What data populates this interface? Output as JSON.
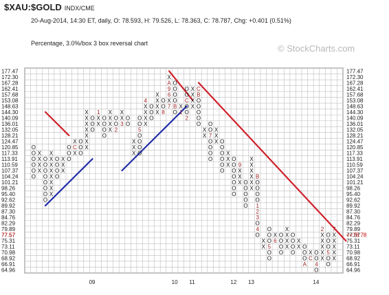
{
  "header": {
    "symbol": "$XAU:$GOLD",
    "exchange": "INDX/CME",
    "info_line": "20-Aug-2014, 14:30 ET, daily, O: 78.593, H: 79.526, L: 78.363, C: 78.787, Chg: +0.401 (0.51%)",
    "subtitle": "Percentage, 3.0%/box 3 box reversal chart",
    "watermark": "© StockCharts.com"
  },
  "colors": {
    "x_mark": "#111111",
    "o_mark": "#111111",
    "month_mark": "#9b1b1b",
    "grid": "#bdbdbd",
    "resistance_line": "#d0202a",
    "support_line": "#1f2fa8",
    "price_tag": "#c00000"
  },
  "chart_data": {
    "type": "point-and-figure",
    "y_levels": [
      "177.47",
      "172.30",
      "167.28",
      "162.41",
      "157.68",
      "153.08",
      "148.63",
      "144.30",
      "140.09",
      "136.01",
      "132.05",
      "128.21",
      "124.47",
      "120.85",
      "117.33",
      "113.91",
      "110.59",
      "107.37",
      "104.24",
      "101.21",
      "98.26",
      "95.40",
      "92.62",
      "89.92",
      "87.30",
      "84.76",
      "82.29",
      "79.89",
      "77.57",
      "75.31",
      "73.11",
      "70.98",
      "68.92",
      "66.91",
      "64.96"
    ],
    "current_price_label": "<<78.78",
    "x_labels": [
      {
        "label": "09",
        "col": 10
      },
      {
        "label": "10",
        "col": 24
      },
      {
        "label": "11",
        "col": 27
      },
      {
        "label": "12",
        "col": 34
      },
      {
        "label": "13",
        "col": 37
      },
      {
        "label": "14",
        "col": 48
      }
    ],
    "columns": [
      {
        "type": "O",
        "top": 13,
        "bottom": 18,
        "marks": {}
      },
      {
        "type": "X",
        "top": 14,
        "bottom": 17,
        "marks": {}
      },
      {
        "type": "O",
        "top": 15,
        "bottom": 22,
        "marks": {}
      },
      {
        "type": "X",
        "top": 14,
        "bottom": 21,
        "marks": {}
      },
      {
        "type": "O",
        "top": 15,
        "bottom": 18,
        "marks": {}
      },
      {
        "type": "X",
        "top": 15,
        "bottom": 17,
        "marks": {}
      },
      {
        "type": "O",
        "top": 13,
        "bottom": 15,
        "marks": {}
      },
      {
        "type": "X",
        "top": 12,
        "bottom": 14,
        "marks": {
          "13": "C"
        }
      },
      {
        "type": "O",
        "top": 12,
        "bottom": 14,
        "marks": {}
      },
      {
        "type": "X",
        "top": 7,
        "bottom": 13,
        "marks": {}
      },
      {
        "type": "O",
        "top": 8,
        "bottom": 10,
        "marks": {}
      },
      {
        "type": "X",
        "top": 7,
        "bottom": 9,
        "marks": {
          "7": "1"
        }
      },
      {
        "type": "O",
        "top": 8,
        "bottom": 11,
        "marks": {}
      },
      {
        "type": "X",
        "top": 7,
        "bottom": 10,
        "marks": {}
      },
      {
        "type": "O",
        "top": 8,
        "bottom": 10,
        "marks": {
          "10": "2"
        }
      },
      {
        "type": "X",
        "top": 7,
        "bottom": 9,
        "marks": {
          "9": "3"
        }
      },
      {
        "type": "O",
        "top": 8,
        "bottom": 9,
        "marks": {}
      },
      {
        "type": "X",
        "top": 12,
        "bottom": 14,
        "marks": {}
      },
      {
        "type": "O",
        "top": 8,
        "bottom": 14,
        "marks": {
          "10": "5"
        }
      },
      {
        "type": "X",
        "top": 5,
        "bottom": 9,
        "marks": {
          "5": "4"
        }
      },
      {
        "type": "O",
        "top": 6,
        "bottom": 8,
        "marks": {}
      },
      {
        "type": "X",
        "top": 4,
        "bottom": 7,
        "marks": {}
      },
      {
        "type": "O",
        "top": 5,
        "bottom": 7,
        "marks": {
          "7": "8"
        }
      },
      {
        "type": "X",
        "top": 1,
        "bottom": 6,
        "marks": {
          "2": "A",
          "3": "9",
          "4": "6",
          "6": "7"
        }
      },
      {
        "type": "O",
        "top": 2,
        "bottom": 7,
        "marks": {
          "6": "B"
        }
      },
      {
        "type": "X",
        "top": 6,
        "bottom": 7,
        "marks": {
          "7": "1"
        }
      },
      {
        "type": "O",
        "top": 3,
        "bottom": 8,
        "marks": {
          "5": "C",
          "8": "2"
        }
      },
      {
        "type": "X",
        "top": 3,
        "bottom": 6,
        "marks": {}
      },
      {
        "type": "O",
        "top": 3,
        "bottom": 9,
        "marks": {
          "3": "C",
          "4": "B"
        }
      },
      {
        "type": "X",
        "top": 10,
        "bottom": 11,
        "marks": {}
      },
      {
        "type": "O",
        "top": 9,
        "bottom": 15,
        "marks": {
          "11": "7"
        }
      },
      {
        "type": "X",
        "top": 10,
        "bottom": 12,
        "marks": {}
      },
      {
        "type": "O",
        "top": 12,
        "bottom": 17,
        "marks": {}
      },
      {
        "type": "X",
        "top": 14,
        "bottom": 16,
        "marks": {}
      },
      {
        "type": "O",
        "top": 15,
        "bottom": 21,
        "marks": {}
      },
      {
        "type": "X",
        "top": 16,
        "bottom": 19,
        "marks": {
          "16": "9"
        }
      },
      {
        "type": "O",
        "top": 19,
        "bottom": 23,
        "marks": {}
      },
      {
        "type": "X",
        "top": 15,
        "bottom": 20,
        "marks": {}
      },
      {
        "type": "O",
        "top": 18,
        "bottom": 28,
        "marks": {
          "18": "B",
          "23": "1",
          "24": "2",
          "25": "3",
          "27": "4"
        }
      },
      {
        "type": "X",
        "top": 29,
        "bottom": 30,
        "marks": {}
      },
      {
        "type": "O",
        "top": 27,
        "bottom": 32,
        "marks": {
          "30": "5"
        }
      },
      {
        "type": "X",
        "top": 28,
        "bottom": 29,
        "marks": {
          "29": "6"
        }
      },
      {
        "type": "O",
        "top": 28,
        "bottom": 31,
        "marks": {}
      },
      {
        "type": "X",
        "top": 27,
        "bottom": 30,
        "marks": {}
      },
      {
        "type": "O",
        "top": 28,
        "bottom": 31,
        "marks": {}
      },
      {
        "type": "X",
        "top": 29,
        "bottom": 30,
        "marks": {}
      },
      {
        "type": "O",
        "top": 30,
        "bottom": 33,
        "marks": {
          "33": "A"
        }
      },
      {
        "type": "X",
        "top": 31,
        "bottom": 32,
        "marks": {
          "32": "C"
        }
      },
      {
        "type": "O",
        "top": 31,
        "bottom": 34,
        "marks": {
          "33": "4"
        }
      },
      {
        "type": "X",
        "top": 27,
        "bottom": 32,
        "marks": {
          "27": "2"
        }
      },
      {
        "type": "O",
        "top": 28,
        "bottom": 33,
        "marks": {
          "31": "5"
        }
      },
      {
        "type": "X",
        "top": 27,
        "bottom": 32,
        "marks": {
          "27": "7"
        }
      }
    ],
    "trend_lines": [
      {
        "color": "resistance",
        "from": [
          2,
          7
        ],
        "to": [
          6,
          11
        ]
      },
      {
        "color": "resistance",
        "from": [
          23,
          0
        ],
        "to": [
          27,
          5
        ]
      },
      {
        "color": "resistance",
        "from": [
          28,
          2
        ],
        "to": [
          53,
          29
        ]
      },
      {
        "color": "support",
        "from": [
          2,
          23
        ],
        "to": [
          10,
          15
        ]
      },
      {
        "color": "support",
        "from": [
          15,
          17
        ],
        "to": [
          26,
          6
        ]
      }
    ]
  }
}
